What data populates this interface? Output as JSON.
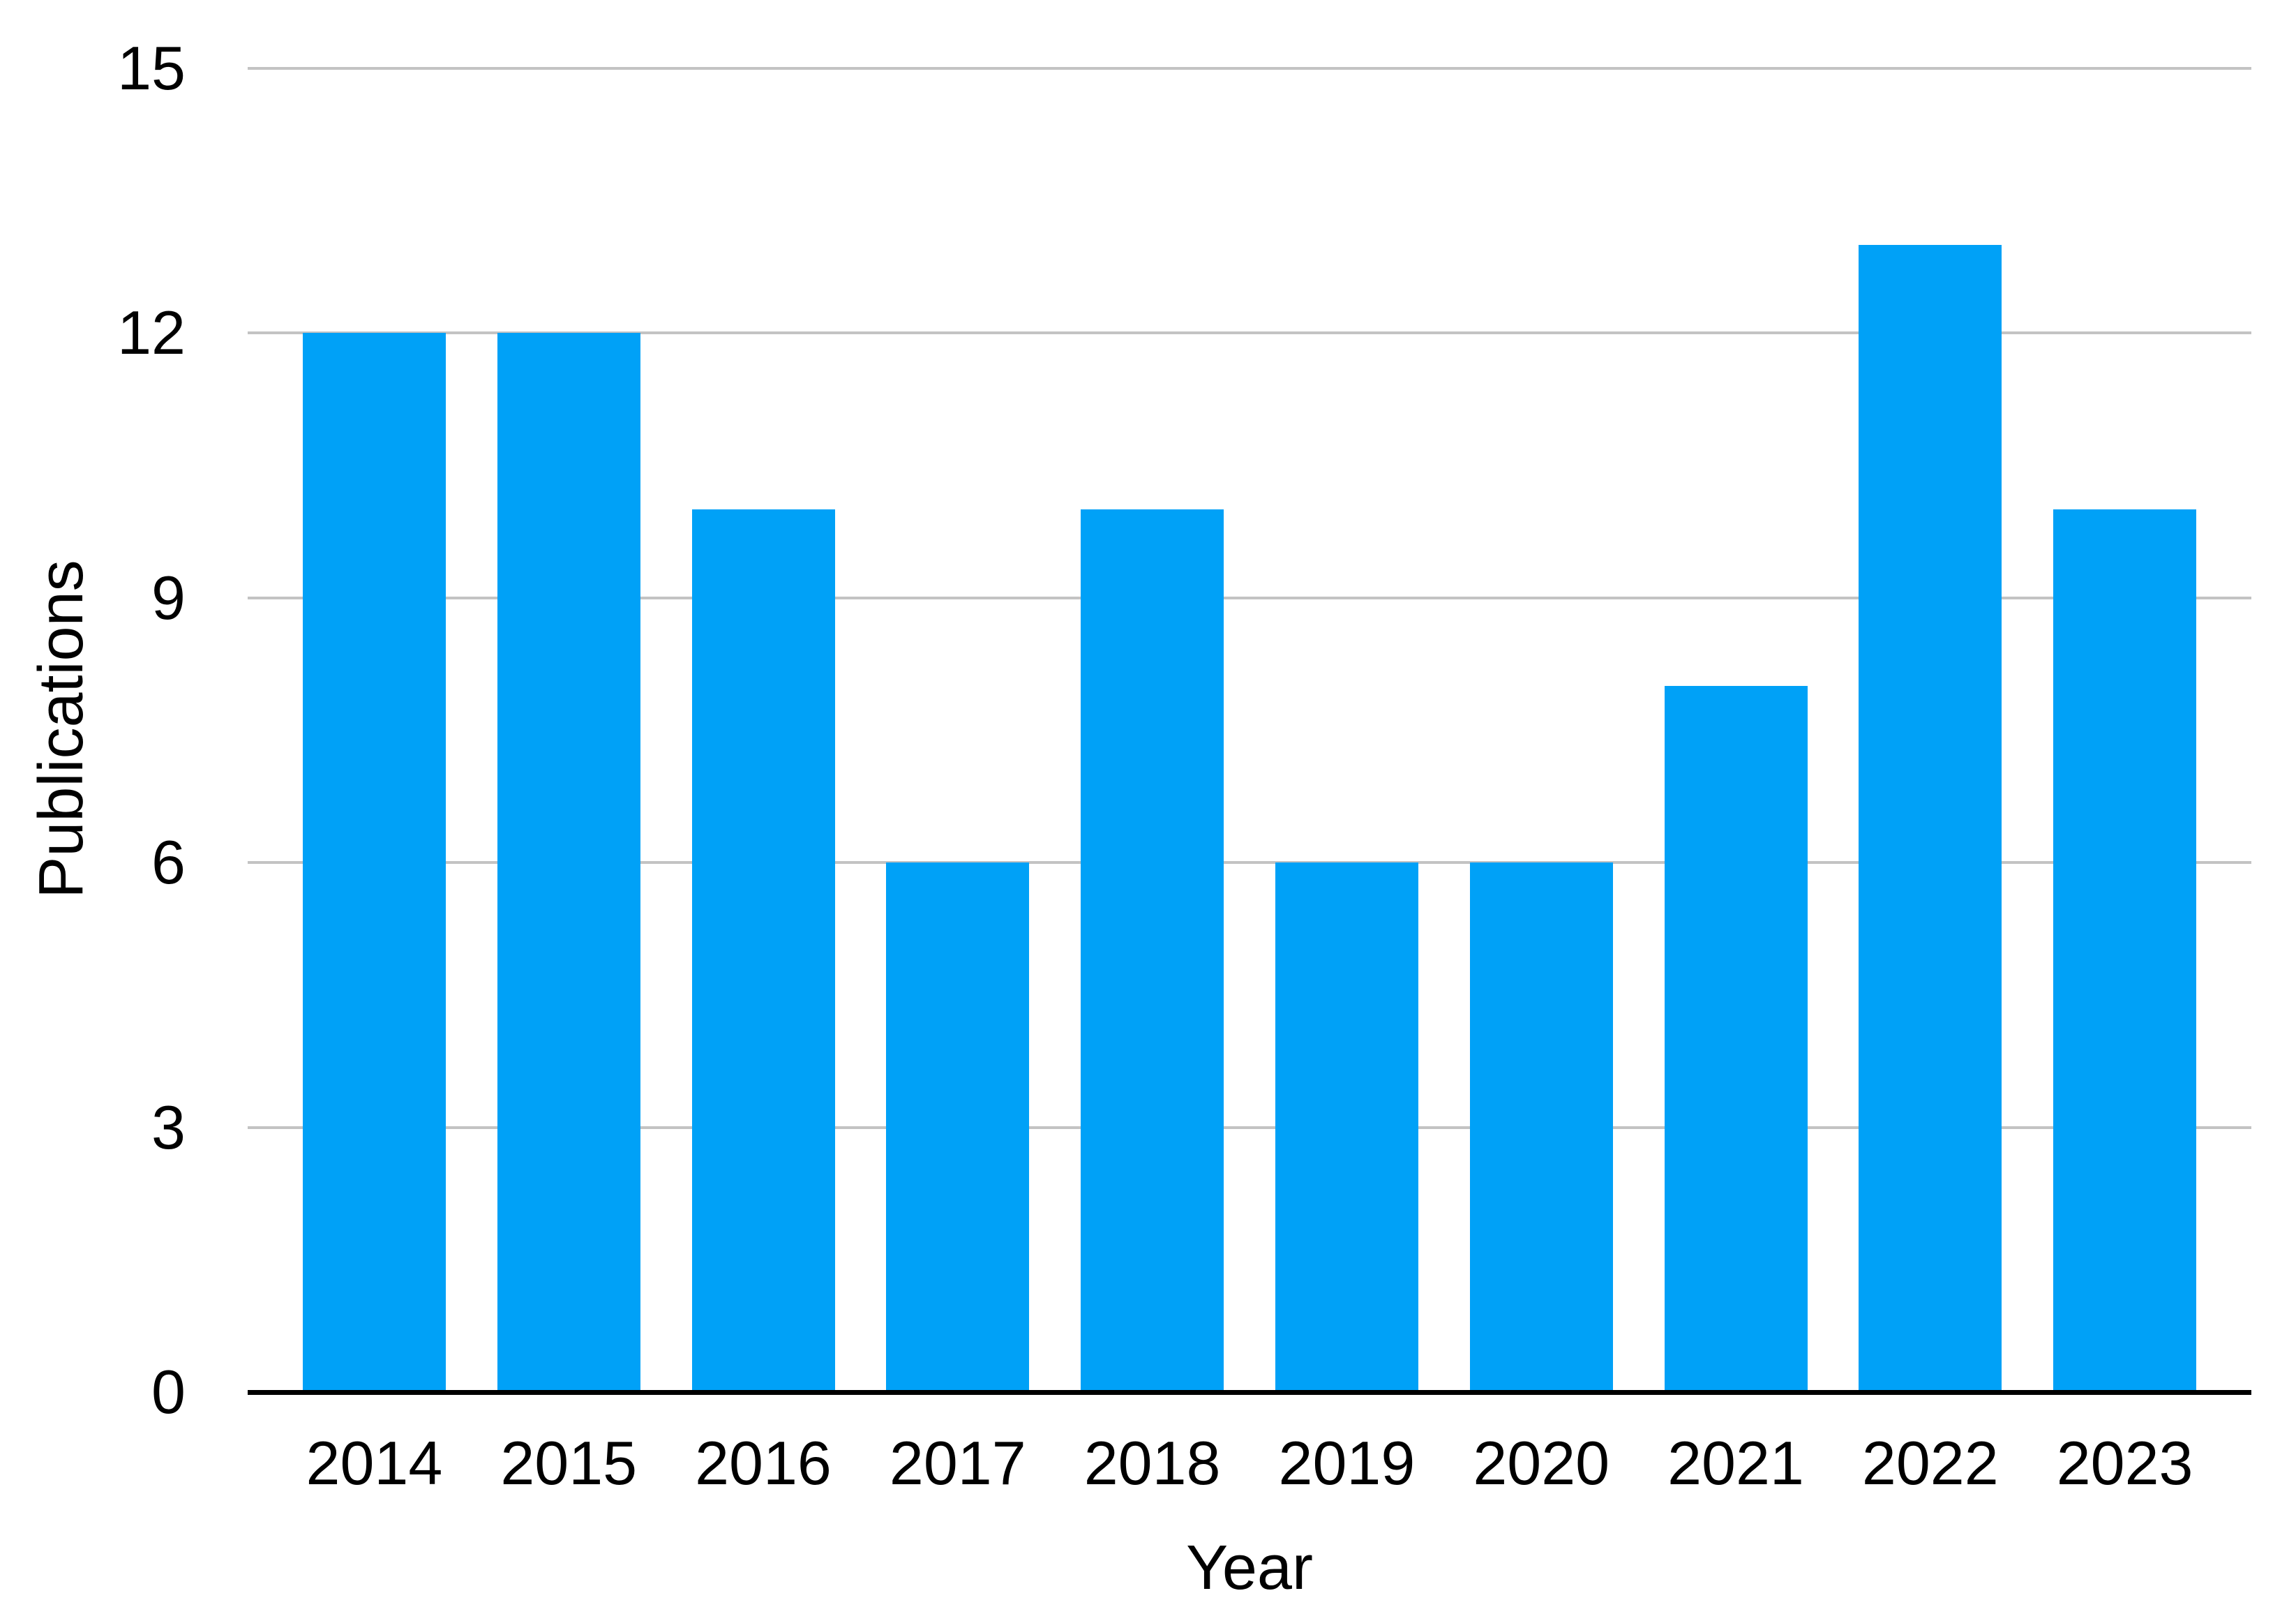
{
  "chart_data": {
    "type": "bar",
    "title": "",
    "xlabel": "Year",
    "ylabel": "Publications",
    "categories": [
      "2014",
      "2015",
      "2016",
      "2017",
      "2018",
      "2019",
      "2020",
      "2021",
      "2022",
      "2023"
    ],
    "values": [
      12,
      12,
      10,
      6,
      10,
      6,
      6,
      8,
      13,
      10
    ],
    "ylim": [
      0,
      15
    ],
    "yticks": [
      0,
      3,
      6,
      9,
      12,
      15
    ],
    "grid": "horizontal",
    "legend_position": "none",
    "bar_color": "#00A1F7",
    "gridline_color": "#C3C3C3",
    "axis_color": "#000000",
    "text_color": "#000000",
    "background_color": "#FFFFFF"
  }
}
